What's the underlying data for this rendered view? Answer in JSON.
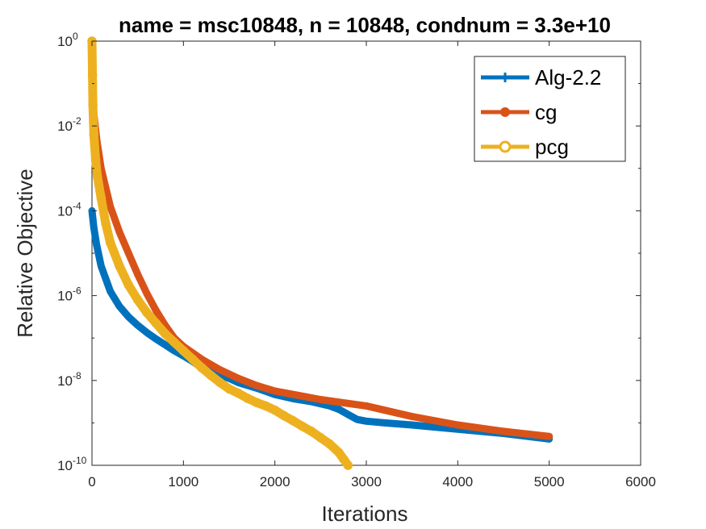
{
  "chart_data": {
    "type": "line",
    "title": "name = msc10848, n = 10848, condnum = 3.3e+10",
    "xlabel": "Iterations",
    "ylabel": "Relative Objective",
    "xlim": [
      0,
      6000
    ],
    "ylim_log10": [
      -10,
      0
    ],
    "x_ticks": [
      "0",
      "1000",
      "2000",
      "3000",
      "4000",
      "5000",
      "6000"
    ],
    "y_ticks": [
      {
        "base": "10",
        "exp": "-10",
        "log10": -10
      },
      {
        "base": "10",
        "exp": "-8",
        "log10": -8
      },
      {
        "base": "10",
        "exp": "-6",
        "log10": -6
      },
      {
        "base": "10",
        "exp": "-4",
        "log10": -4
      },
      {
        "base": "10",
        "exp": "-2",
        "log10": -2
      },
      {
        "base": "10",
        "exp": "0",
        "log10": 0
      }
    ],
    "grid": false,
    "legend_position": "top-right",
    "series": [
      {
        "name": "Alg-2.2",
        "color": "#0072BD",
        "marker": "plus",
        "x": [
          0,
          20,
          50,
          100,
          200,
          300,
          400,
          500,
          600,
          700,
          800,
          900,
          1000,
          1100,
          1200,
          1300,
          1400,
          1500,
          1600,
          1800,
          2000,
          2200,
          2400,
          2600,
          2700,
          2800,
          2900,
          3000,
          3200,
          3500,
          4000,
          4500,
          5000
        ],
        "log10y": [
          -4.0,
          -4.4,
          -4.8,
          -5.3,
          -5.9,
          -6.25,
          -6.5,
          -6.7,
          -6.87,
          -7.02,
          -7.16,
          -7.3,
          -7.42,
          -7.55,
          -7.7,
          -7.8,
          -7.88,
          -7.95,
          -8.05,
          -8.18,
          -8.33,
          -8.43,
          -8.5,
          -8.6,
          -8.68,
          -8.8,
          -8.92,
          -8.96,
          -9.0,
          -9.05,
          -9.15,
          -9.25,
          -9.38
        ]
      },
      {
        "name": "cg",
        "color": "#D95319",
        "marker": "circle",
        "x": [
          0,
          10,
          50,
          100,
          200,
          300,
          400,
          500,
          600,
          700,
          800,
          900,
          1000,
          1200,
          1400,
          1600,
          1800,
          2000,
          2500,
          3000,
          3500,
          4000,
          4500,
          5000
        ],
        "log10y": [
          -1.0,
          -1.5,
          -2.3,
          -3.0,
          -3.9,
          -4.5,
          -5.0,
          -5.5,
          -5.95,
          -6.35,
          -6.7,
          -7.0,
          -7.2,
          -7.5,
          -7.75,
          -7.95,
          -8.12,
          -8.25,
          -8.45,
          -8.6,
          -8.85,
          -9.05,
          -9.2,
          -9.32
        ]
      },
      {
        "name": "pcg",
        "color": "#EDB120",
        "marker": "circle-open",
        "x": [
          0,
          5,
          10,
          20,
          40,
          60,
          100,
          150,
          200,
          300,
          400,
          500,
          600,
          700,
          800,
          900,
          1000,
          1100,
          1200,
          1300,
          1400,
          1500,
          1600,
          1700,
          1800,
          1900,
          2000,
          2100,
          2200,
          2300,
          2400,
          2500,
          2600,
          2700,
          2750,
          2800
        ],
        "log10y": [
          0.0,
          -0.8,
          -1.5,
          -2.2,
          -2.8,
          -3.2,
          -3.7,
          -4.3,
          -4.75,
          -5.3,
          -5.75,
          -6.1,
          -6.4,
          -6.65,
          -6.9,
          -7.1,
          -7.3,
          -7.5,
          -7.7,
          -7.88,
          -8.05,
          -8.2,
          -8.3,
          -8.42,
          -8.52,
          -8.6,
          -8.7,
          -8.83,
          -8.95,
          -9.08,
          -9.2,
          -9.35,
          -9.5,
          -9.7,
          -9.85,
          -10.0
        ]
      }
    ]
  }
}
